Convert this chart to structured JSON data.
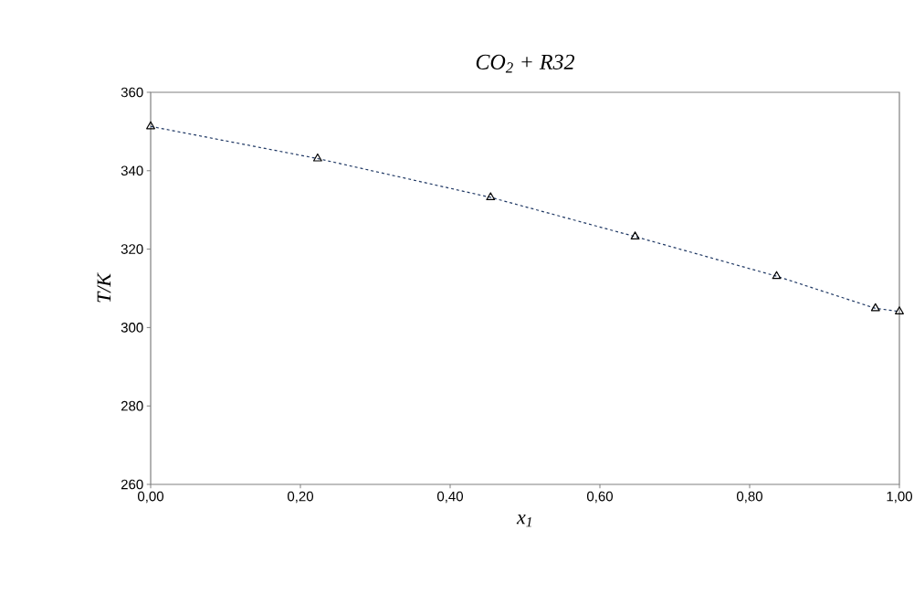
{
  "chart_data": {
    "type": "line",
    "title": "CO$_{2}$ + R32",
    "xlabel": "x$_{1}$",
    "ylabel": "T/K",
    "x": [
      0,
      0.223,
      0.454,
      0.647,
      0.836,
      0.968,
      1.0
    ],
    "series": [
      {
        "color": "#1f3864",
        "values": [
          351.3,
          343.1,
          333.2,
          323.2,
          313.1,
          304.9,
          304.1
        ]
      }
    ],
    "xlim": [
      0,
      1
    ],
    "ylim": [
      260,
      360
    ],
    "xticks": [
      {
        "value": 0,
        "label": "0,00"
      },
      {
        "value": 0.2,
        "label": "0,20"
      },
      {
        "value": 0.4,
        "label": "0,40"
      },
      {
        "value": 0.6,
        "label": "0,60"
      },
      {
        "value": 0.8,
        "label": "0,80"
      },
      {
        "value": 1,
        "label": "1,00"
      }
    ],
    "yticks": [
      260,
      280,
      300,
      320,
      340,
      360
    ],
    "marker": "triangle",
    "line_style": "dashed",
    "grid": false
  }
}
